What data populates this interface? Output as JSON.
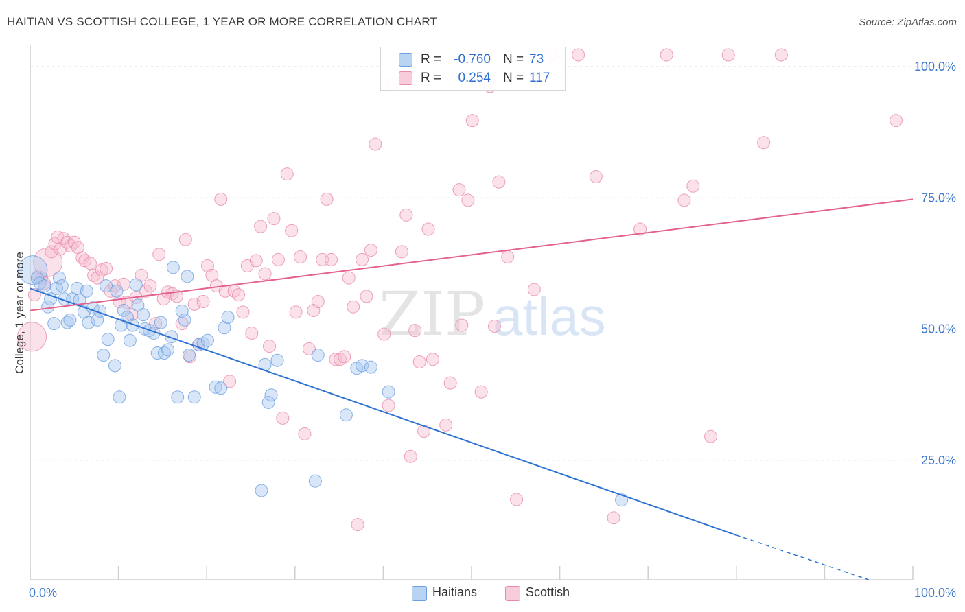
{
  "title": "HAITIAN VS SCOTTISH COLLEGE, 1 YEAR OR MORE CORRELATION CHART",
  "source": "Source: ZipAtlas.com",
  "watermark": {
    "zip": "ZIP",
    "atlas": "atlas"
  },
  "legend": {
    "rows": [
      {
        "r_label": "R =",
        "r_value": "-0.760",
        "n_label": "N =",
        "n_value": "73"
      },
      {
        "r_label": "R =",
        "r_value": "0.254",
        "n_label": "N =",
        "n_value": "117"
      }
    ]
  },
  "bottom_legend": [
    "Haitians",
    "Scottish"
  ],
  "colors": {
    "haitians_fill": "#a9c8f0",
    "haitians_stroke": "#6a9fe0",
    "haitians_line": "#2e73d2",
    "scottish_fill": "#f6bfd0",
    "scottish_stroke": "#e98aab",
    "scottish_line": "#e4608d",
    "tick_label": "#3d78cc",
    "grid": "#dcdcdc"
  },
  "chart_data": {
    "type": "scatter",
    "title": "HAITIAN VS SCOTTISH COLLEGE, 1 YEAR OR MORE CORRELATION CHART",
    "xlabel": "",
    "ylabel": "College, 1 year or more",
    "xlim": [
      0,
      100
    ],
    "ylim": [
      0,
      100
    ],
    "x_tick_labels": [
      "0.0%",
      "100.0%"
    ],
    "y_ticks": [
      25,
      50,
      75,
      100
    ],
    "y_tick_labels": [
      "25.0%",
      "50.0%",
      "75.0%",
      "100.0%"
    ],
    "grid": true,
    "legend_position": "top-center",
    "series": [
      {
        "name": "Haitians",
        "r": -0.76,
        "n": 73,
        "trend": {
          "x0": 0,
          "y0": 55.5,
          "x1": 80,
          "y1": 8.5,
          "dashed_to_x": 95,
          "dashed_to_y": 0
        },
        "points": [
          [
            0.3,
            59.0,
            2
          ],
          [
            0.8,
            57.5,
            1
          ],
          [
            1.1,
            56.5,
            1
          ],
          [
            1.6,
            56.0,
            1
          ],
          [
            2.0,
            52.0,
            1
          ],
          [
            2.3,
            53.5,
            1
          ],
          [
            2.7,
            48.8,
            1
          ],
          [
            3.0,
            55.5,
            1
          ],
          [
            3.3,
            57.5,
            1
          ],
          [
            3.6,
            56.0,
            1
          ],
          [
            3.9,
            53.5,
            1
          ],
          [
            4.2,
            49.0,
            1
          ],
          [
            4.5,
            49.5,
            1
          ],
          [
            4.8,
            53.5,
            1
          ],
          [
            5.3,
            55.5,
            1
          ],
          [
            5.6,
            53.3,
            1
          ],
          [
            6.1,
            51.0,
            1
          ],
          [
            6.4,
            55.0,
            1
          ],
          [
            6.6,
            49.0,
            1
          ],
          [
            7.1,
            51.8,
            1
          ],
          [
            7.6,
            49.5,
            1
          ],
          [
            7.9,
            51.2,
            1
          ],
          [
            8.3,
            42.8,
            1
          ],
          [
            8.6,
            56.0,
            1
          ],
          [
            8.8,
            45.8,
            1
          ],
          [
            9.6,
            40.8,
            1
          ],
          [
            9.8,
            55.0,
            1
          ],
          [
            10.1,
            34.8,
            1
          ],
          [
            10.3,
            48.5,
            1
          ],
          [
            10.6,
            51.3,
            1
          ],
          [
            11.0,
            50.0,
            1
          ],
          [
            11.3,
            45.6,
            1
          ],
          [
            11.6,
            48.5,
            1
          ],
          [
            12.0,
            56.2,
            1
          ],
          [
            12.2,
            52.3,
            1
          ],
          [
            12.8,
            50.5,
            1
          ],
          [
            13.0,
            47.8,
            1
          ],
          [
            13.5,
            47.5,
            1
          ],
          [
            14.0,
            47.0,
            1
          ],
          [
            14.4,
            43.2,
            1
          ],
          [
            14.8,
            49.0,
            1
          ],
          [
            15.2,
            43.2,
            1
          ],
          [
            15.6,
            43.8,
            1
          ],
          [
            16.0,
            46.3,
            1
          ],
          [
            16.2,
            59.5,
            1
          ],
          [
            16.7,
            34.8,
            1
          ],
          [
            17.2,
            51.2,
            1
          ],
          [
            17.5,
            49.5,
            1
          ],
          [
            17.8,
            57.8,
            1
          ],
          [
            18.0,
            42.8,
            1
          ],
          [
            18.6,
            34.8,
            1
          ],
          [
            19.1,
            44.8,
            1
          ],
          [
            19.6,
            45.0,
            1
          ],
          [
            20.1,
            45.6,
            1
          ],
          [
            21.0,
            36.7,
            1
          ],
          [
            21.6,
            36.5,
            1
          ],
          [
            22.0,
            48.0,
            1
          ],
          [
            22.4,
            50.0,
            1
          ],
          [
            26.2,
            17.0,
            1
          ],
          [
            26.6,
            41.0,
            1
          ],
          [
            27.0,
            33.8,
            1
          ],
          [
            27.3,
            35.2,
            1
          ],
          [
            28.0,
            41.8,
            1
          ],
          [
            32.3,
            18.8,
            1
          ],
          [
            32.6,
            42.8,
            1
          ],
          [
            35.8,
            31.4,
            1
          ],
          [
            37.0,
            40.3,
            1
          ],
          [
            37.6,
            40.8,
            1
          ],
          [
            38.6,
            40.5,
            1
          ],
          [
            40.6,
            35.8,
            1
          ],
          [
            67.0,
            15.2,
            1
          ]
        ]
      },
      {
        "name": "Scottish",
        "r": 0.254,
        "n": 117,
        "trend": {
          "x0": 0,
          "y0": 51.3,
          "x1": 100,
          "y1": 72.5
        },
        "points": [
          [
            0.2,
            46.3,
            2
          ],
          [
            0.5,
            54.3,
            1
          ],
          [
            0.9,
            57.8,
            1
          ],
          [
            1.3,
            57.5,
            1
          ],
          [
            1.6,
            56.5,
            1
          ],
          [
            2.0,
            60.5,
            2
          ],
          [
            2.4,
            62.5,
            1
          ],
          [
            2.8,
            64.0,
            1
          ],
          [
            3.1,
            65.3,
            1
          ],
          [
            3.4,
            63.0,
            1
          ],
          [
            3.8,
            65.0,
            1
          ],
          [
            4.2,
            64.3,
            1
          ],
          [
            4.6,
            63.6,
            1
          ],
          [
            5.0,
            64.3,
            1
          ],
          [
            5.4,
            63.3,
            1
          ],
          [
            5.9,
            61.3,
            1
          ],
          [
            6.2,
            60.8,
            1
          ],
          [
            6.8,
            60.3,
            1
          ],
          [
            7.2,
            58.0,
            1
          ],
          [
            7.6,
            57.5,
            1
          ],
          [
            8.1,
            59.0,
            1
          ],
          [
            8.6,
            59.3,
            1
          ],
          [
            9.1,
            55.0,
            1
          ],
          [
            9.6,
            56.0,
            1
          ],
          [
            10.1,
            53.0,
            1
          ],
          [
            10.6,
            56.3,
            1
          ],
          [
            11.0,
            52.8,
            1
          ],
          [
            11.5,
            50.5,
            1
          ],
          [
            12.0,
            53.8,
            1
          ],
          [
            12.6,
            58.0,
            1
          ],
          [
            13.1,
            55.0,
            1
          ],
          [
            13.6,
            56.0,
            1
          ],
          [
            14.2,
            48.8,
            1
          ],
          [
            14.6,
            62.0,
            1
          ],
          [
            15.1,
            53.5,
            1
          ],
          [
            15.6,
            54.8,
            1
          ],
          [
            16.1,
            54.5,
            1
          ],
          [
            16.6,
            54.0,
            1
          ],
          [
            17.2,
            48.8,
            1
          ],
          [
            17.6,
            64.8,
            1
          ],
          [
            18.1,
            42.5,
            1
          ],
          [
            18.6,
            52.5,
            1
          ],
          [
            19.1,
            44.8,
            1
          ],
          [
            19.6,
            53.0,
            1
          ],
          [
            20.1,
            59.8,
            1
          ],
          [
            20.6,
            58.0,
            1
          ],
          [
            21.1,
            56.0,
            1
          ],
          [
            21.6,
            72.5,
            1
          ],
          [
            22.1,
            55.0,
            1
          ],
          [
            22.6,
            37.8,
            1
          ],
          [
            23.1,
            55.0,
            1
          ],
          [
            23.6,
            54.3,
            1
          ],
          [
            24.1,
            51.0,
            1
          ],
          [
            24.6,
            59.8,
            1
          ],
          [
            25.1,
            47.0,
            1
          ],
          [
            25.6,
            60.8,
            1
          ],
          [
            26.1,
            67.3,
            1
          ],
          [
            26.6,
            58.3,
            1
          ],
          [
            27.1,
            44.5,
            1
          ],
          [
            27.6,
            68.8,
            1
          ],
          [
            28.1,
            61.0,
            1
          ],
          [
            28.6,
            30.8,
            1
          ],
          [
            29.1,
            77.3,
            1
          ],
          [
            29.6,
            66.5,
            1
          ],
          [
            30.1,
            51.0,
            1
          ],
          [
            30.6,
            61.5,
            1
          ],
          [
            31.1,
            27.8,
            1
          ],
          [
            31.6,
            44.0,
            1
          ],
          [
            32.1,
            51.3,
            1
          ],
          [
            32.6,
            53.0,
            1
          ],
          [
            33.1,
            61.0,
            1
          ],
          [
            33.6,
            72.5,
            1
          ],
          [
            34.1,
            61.0,
            1
          ],
          [
            34.6,
            42.0,
            1
          ],
          [
            35.1,
            42.0,
            1
          ],
          [
            35.6,
            42.5,
            1
          ],
          [
            36.1,
            57.5,
            1
          ],
          [
            36.6,
            52.0,
            1
          ],
          [
            37.1,
            10.5,
            1
          ],
          [
            37.6,
            61.0,
            1
          ],
          [
            38.1,
            54.0,
            1
          ],
          [
            38.6,
            62.8,
            1
          ],
          [
            39.1,
            83.0,
            1
          ],
          [
            40.1,
            46.8,
            1
          ],
          [
            40.6,
            33.2,
            1
          ],
          [
            41.1,
            94.5,
            1
          ],
          [
            42.1,
            62.5,
            1
          ],
          [
            42.6,
            69.5,
            1
          ],
          [
            43.1,
            23.5,
            1
          ],
          [
            43.6,
            47.5,
            1
          ],
          [
            44.1,
            41.5,
            1
          ],
          [
            44.6,
            28.3,
            1
          ],
          [
            45.1,
            66.8,
            1
          ],
          [
            45.6,
            42.0,
            1
          ],
          [
            47.1,
            29.5,
            1
          ],
          [
            47.6,
            37.5,
            1
          ],
          [
            48.6,
            74.3,
            1
          ],
          [
            48.9,
            48.5,
            1
          ],
          [
            49.6,
            72.3,
            1
          ],
          [
            50.1,
            87.5,
            1
          ],
          [
            51.1,
            35.8,
            1
          ],
          [
            52.1,
            94.0,
            1
          ],
          [
            52.6,
            48.3,
            1
          ],
          [
            53.1,
            75.8,
            1
          ],
          [
            54.1,
            61.5,
            1
          ],
          [
            55.1,
            15.3,
            1
          ],
          [
            57.1,
            55.3,
            1
          ],
          [
            59.1,
            100.0,
            1
          ],
          [
            62.1,
            100.0,
            1
          ],
          [
            64.1,
            76.8,
            1
          ],
          [
            66.1,
            11.8,
            1
          ],
          [
            69.1,
            66.8,
            1
          ],
          [
            72.1,
            100.0,
            1
          ],
          [
            74.1,
            72.3,
            1
          ],
          [
            75.1,
            75.0,
            1
          ],
          [
            77.1,
            27.3,
            1
          ],
          [
            79.1,
            100.0,
            1
          ],
          [
            83.1,
            83.3,
            1
          ],
          [
            85.1,
            100.0,
            1
          ],
          [
            98.1,
            87.5,
            1
          ]
        ]
      }
    ]
  }
}
